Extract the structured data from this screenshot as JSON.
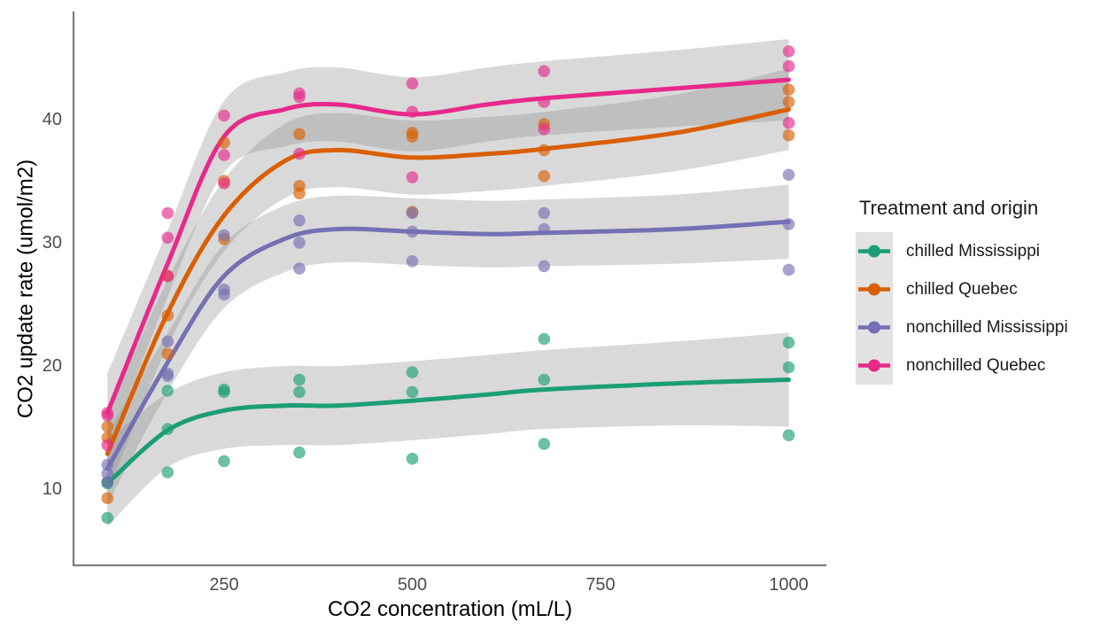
{
  "chart_data": {
    "type": "scatter",
    "subtype": "points-with-loess-smooth-and-confidence-ribbons",
    "xlabel": "CO2 concentration (mL/L)",
    "ylabel": "CO2 update rate (umol/m2)",
    "x_ticks": [
      250,
      500,
      750,
      1000
    ],
    "y_ticks": [
      10,
      20,
      30,
      40
    ],
    "xlim": [
      50,
      1050
    ],
    "ylim": [
      3.86,
      48.73
    ],
    "grid": "off",
    "axis_color": "#7d7d7d",
    "tick_label_color": "#4d4d4d",
    "ribbon_fill": "rgba(140,140,140,0.33)",
    "point_opacity": 0.65,
    "legend": {
      "title": "Treatment and origin",
      "position": "right"
    },
    "conc_levels": [
      95,
      175,
      250,
      350,
      500,
      675,
      1000
    ],
    "groups": [
      {
        "name": "chilled Mississippi",
        "color": "#1B9E77",
        "points": [
          [
            95,
            10.5
          ],
          [
            175,
            14.9
          ],
          [
            250,
            18.1
          ],
          [
            350,
            18.9
          ],
          [
            500,
            19.5
          ],
          [
            675,
            22.2
          ],
          [
            1000,
            21.9
          ],
          [
            95,
            7.7
          ],
          [
            175,
            11.4
          ],
          [
            250,
            12.3
          ],
          [
            350,
            13.0
          ],
          [
            500,
            12.5
          ],
          [
            675,
            13.7
          ],
          [
            1000,
            14.4
          ],
          [
            95,
            10.6
          ],
          [
            175,
            18.0
          ],
          [
            250,
            17.9
          ],
          [
            350,
            17.9
          ],
          [
            500,
            17.9
          ],
          [
            675,
            18.9
          ],
          [
            1000,
            19.9
          ]
        ],
        "smooth": {
          "x": [
            95,
            175,
            250,
            330,
            400,
            500,
            600,
            675,
            850,
            1000
          ],
          "y": [
            10.5,
            14.8,
            16.4,
            16.8,
            16.8,
            17.2,
            17.7,
            18.1,
            18.6,
            18.9
          ],
          "lo": [
            7.0,
            11.8,
            13.3,
            13.6,
            13.6,
            14.0,
            14.5,
            14.9,
            15.2,
            15.1
          ],
          "hi": [
            14.0,
            17.8,
            19.5,
            20.0,
            20.0,
            20.4,
            20.9,
            21.3,
            22.0,
            22.7
          ]
        }
      },
      {
        "name": "chilled Quebec",
        "color": "#D95F02",
        "points": [
          [
            95,
            14.2
          ],
          [
            175,
            24.1
          ],
          [
            250,
            30.3
          ],
          [
            350,
            34.6
          ],
          [
            500,
            32.5
          ],
          [
            675,
            35.4
          ],
          [
            1000,
            38.7
          ],
          [
            95,
            9.3
          ],
          [
            175,
            27.3
          ],
          [
            250,
            35.0
          ],
          [
            350,
            38.8
          ],
          [
            500,
            38.6
          ],
          [
            675,
            37.5
          ],
          [
            1000,
            42.4
          ],
          [
            95,
            15.1
          ],
          [
            175,
            21.0
          ],
          [
            250,
            38.1
          ],
          [
            350,
            34.0
          ],
          [
            500,
            38.9
          ],
          [
            675,
            39.6
          ],
          [
            1000,
            41.4
          ]
        ],
        "smooth": {
          "x": [
            95,
            175,
            250,
            330,
            400,
            500,
            600,
            675,
            850,
            1000
          ],
          "y": [
            12.9,
            24.3,
            32.2,
            36.6,
            37.5,
            36.9,
            37.2,
            37.6,
            38.9,
            40.8
          ],
          "lo": [
            9.7,
            21.6,
            29.3,
            33.6,
            34.5,
            33.9,
            34.2,
            34.6,
            35.8,
            37.5
          ],
          "hi": [
            16.1,
            27.0,
            35.1,
            39.6,
            40.5,
            39.9,
            40.2,
            40.6,
            42.0,
            44.1
          ]
        }
      },
      {
        "name": "nonchilled Mississippi",
        "color": "#7570B3",
        "points": [
          [
            95,
            10.6
          ],
          [
            175,
            19.2
          ],
          [
            250,
            26.2
          ],
          [
            350,
            30.0
          ],
          [
            500,
            30.9
          ],
          [
            675,
            32.4
          ],
          [
            1000,
            35.5
          ],
          [
            95,
            12.0
          ],
          [
            175,
            22.0
          ],
          [
            250,
            30.6
          ],
          [
            350,
            31.8
          ],
          [
            500,
            32.4
          ],
          [
            675,
            31.1
          ],
          [
            1000,
            31.5
          ],
          [
            95,
            11.3
          ],
          [
            175,
            19.4
          ],
          [
            250,
            25.8
          ],
          [
            350,
            27.9
          ],
          [
            500,
            28.5
          ],
          [
            675,
            28.1
          ],
          [
            1000,
            27.8
          ]
        ],
        "smooth": {
          "x": [
            95,
            175,
            250,
            330,
            400,
            500,
            600,
            675,
            850,
            1000
          ],
          "y": [
            11.7,
            20.3,
            27.3,
            30.3,
            31.1,
            30.9,
            30.7,
            30.8,
            31.1,
            31.7
          ],
          "lo": [
            8.8,
            17.9,
            24.7,
            27.6,
            28.4,
            28.2,
            28.0,
            28.1,
            28.3,
            28.7
          ],
          "hi": [
            14.6,
            22.7,
            29.9,
            33.0,
            33.8,
            33.6,
            33.4,
            33.5,
            33.9,
            34.7
          ]
        }
      },
      {
        "name": "nonchilled Quebec",
        "color": "#E7298A",
        "points": [
          [
            95,
            16.0
          ],
          [
            175,
            30.4
          ],
          [
            250,
            34.8
          ],
          [
            350,
            37.2
          ],
          [
            500,
            35.3
          ],
          [
            675,
            39.2
          ],
          [
            1000,
            39.7
          ],
          [
            95,
            13.6
          ],
          [
            175,
            27.3
          ],
          [
            250,
            37.1
          ],
          [
            350,
            41.8
          ],
          [
            500,
            40.6
          ],
          [
            675,
            41.4
          ],
          [
            1000,
            44.3
          ],
          [
            95,
            16.2
          ],
          [
            175,
            32.4
          ],
          [
            250,
            40.3
          ],
          [
            350,
            42.1
          ],
          [
            500,
            42.9
          ],
          [
            675,
            43.9
          ],
          [
            1000,
            45.5
          ]
        ],
        "smooth": {
          "x": [
            95,
            175,
            250,
            330,
            400,
            500,
            600,
            675,
            850,
            1000
          ],
          "y": [
            16.2,
            28.3,
            38.6,
            40.8,
            41.2,
            40.4,
            41.2,
            41.7,
            42.5,
            43.2
          ],
          "lo": [
            13.0,
            25.6,
            35.7,
            37.8,
            38.2,
            37.4,
            38.2,
            38.7,
            39.4,
            39.9
          ],
          "hi": [
            19.4,
            31.0,
            41.5,
            43.8,
            44.2,
            43.4,
            44.2,
            44.7,
            45.6,
            46.5
          ]
        }
      }
    ]
  }
}
